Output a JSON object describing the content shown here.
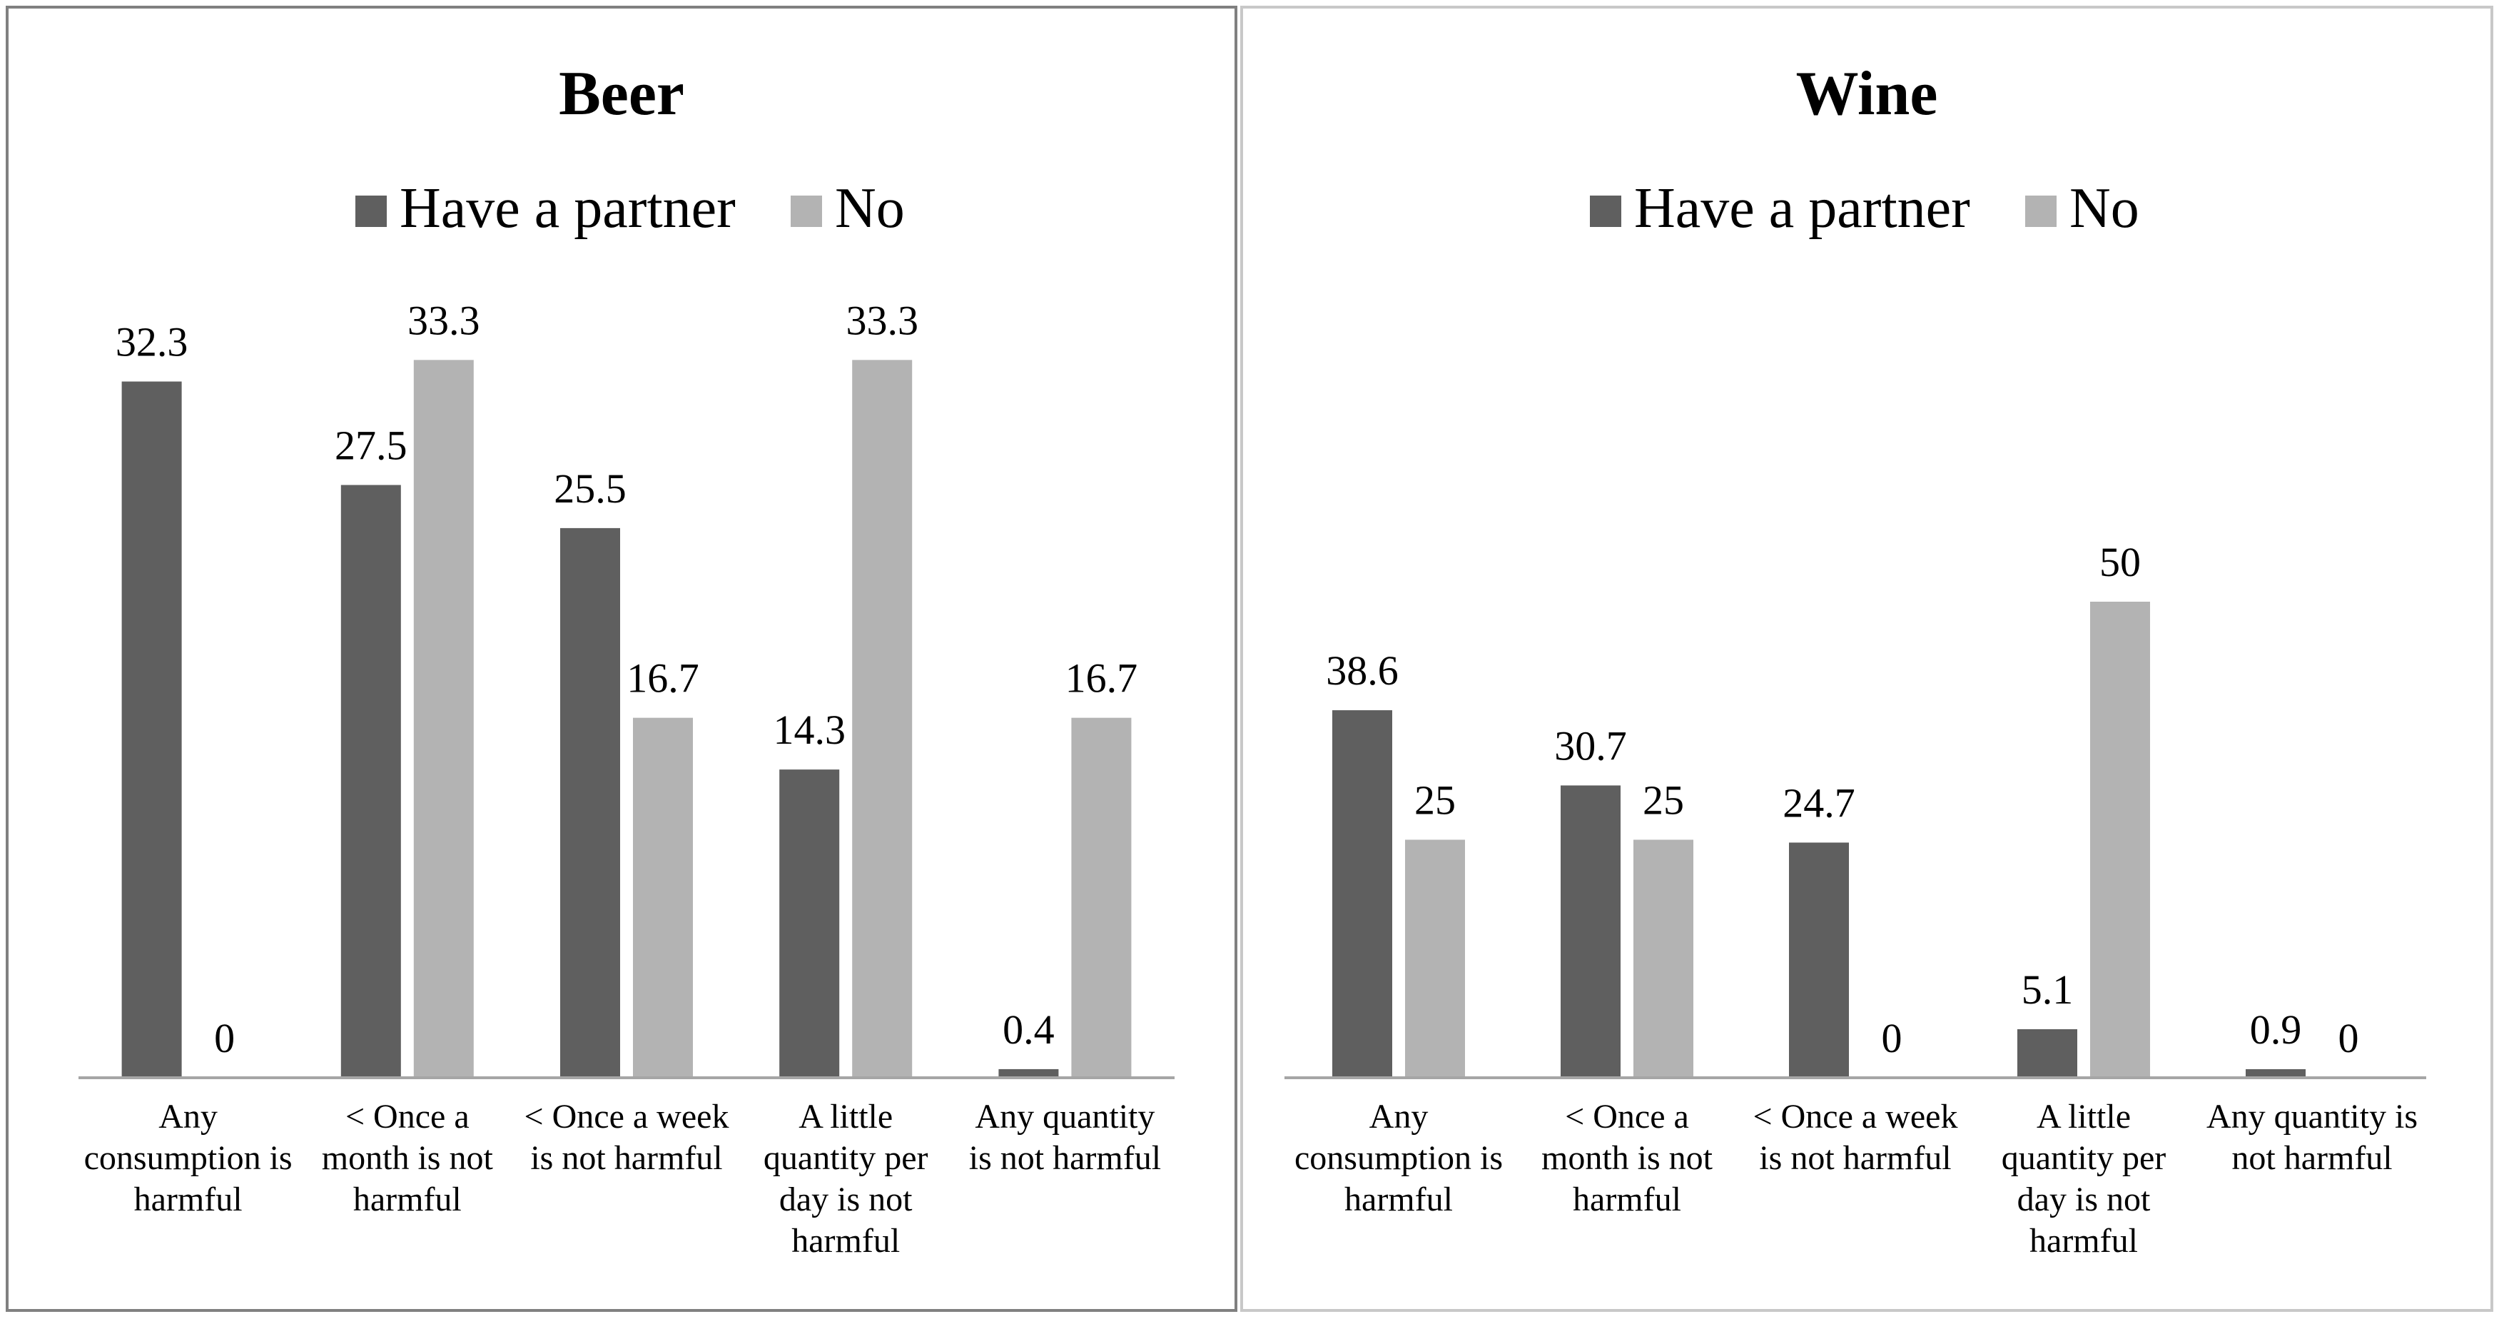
{
  "chart_data": [
    {
      "type": "bar",
      "title": "Beer",
      "legend_position": "top",
      "grid": false,
      "categories": [
        [
          "Any",
          "consumption is",
          "harmful"
        ],
        [
          "< Once a",
          "month  is not",
          "harmful"
        ],
        [
          "< Once a week",
          "is not harmful"
        ],
        [
          "A little",
          "quantity per",
          "day is not",
          "harmful"
        ],
        [
          "Any quantity",
          "is not harmful"
        ]
      ],
      "series": [
        {
          "name": "Have a partner",
          "color": "#5f5f5f",
          "values": [
            32.3,
            27.5,
            25.5,
            14.3,
            0.4
          ],
          "labels": [
            "32.3",
            "27.5",
            "25.5",
            "14.3",
            "0.4"
          ]
        },
        {
          "name": "No",
          "color": "#b3b3b3",
          "values": [
            0,
            33.3,
            16.7,
            33.3,
            16.7
          ],
          "labels": [
            "0",
            "33.3",
            "16.7",
            "33.3",
            "16.7"
          ]
        }
      ],
      "ylim": [
        0,
        36
      ]
    },
    {
      "type": "bar",
      "title": "Wine",
      "legend_position": "top",
      "grid": false,
      "categories": [
        [
          "Any",
          "consumption is",
          "harmful"
        ],
        [
          "< Once a",
          "month is not",
          "harmful"
        ],
        [
          "< Once a week",
          "is not harmful"
        ],
        [
          "A little",
          "quantity per",
          "day is not",
          "harmful"
        ],
        [
          "Any quantity is",
          "not harmful"
        ]
      ],
      "series": [
        {
          "name": "Have a partner",
          "color": "#5f5f5f",
          "values": [
            38.6,
            30.7,
            24.7,
            5.1,
            0.9
          ],
          "labels": [
            "38.6",
            "30.7",
            "24.7",
            "5.1",
            "0.9"
          ]
        },
        {
          "name": "No",
          "color": "#b3b3b3",
          "values": [
            25,
            25,
            0,
            50,
            0
          ],
          "labels": [
            "25",
            "25",
            "0",
            "50",
            "0"
          ]
        }
      ],
      "ylim": [
        0,
        56
      ]
    }
  ]
}
